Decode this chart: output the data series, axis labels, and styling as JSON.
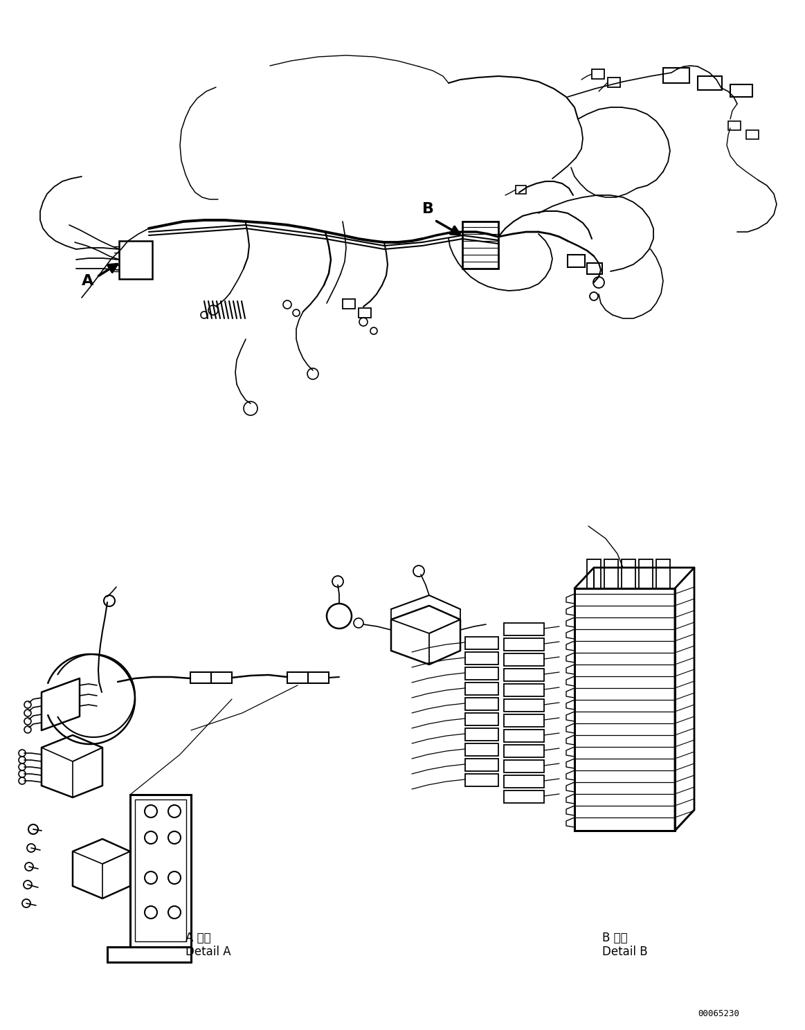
{
  "background_color": "#ffffff",
  "line_color": "#000000",
  "label_A": "A",
  "label_B": "B",
  "detail_A_jp": "A 詳細",
  "detail_A_en": "Detail A",
  "detail_B_jp": "B 詳細",
  "detail_B_en": "Detail B",
  "part_number": "00065230",
  "fig_width": 11.63,
  "fig_height": 14.88,
  "dpi": 100
}
